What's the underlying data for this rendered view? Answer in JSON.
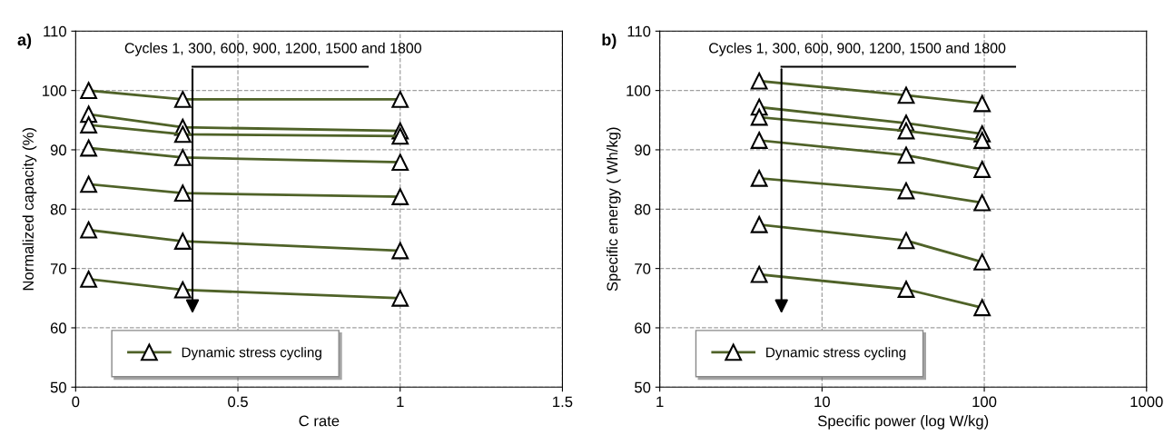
{
  "chart_data": [
    {
      "type": "line",
      "xlabel": "C rate",
      "ylabel": "Normalized capacity (%)",
      "annotations": [
        "a)",
        "Cycles 1, 300, 600, 900, 1200, 1500 and 1800"
      ],
      "x": [
        0.04,
        0.33,
        1
      ],
      "xlim": [
        0,
        1.5
      ],
      "xticks": [
        0,
        0.5,
        1,
        1.5
      ],
      "ylim": [
        50,
        110
      ],
      "yticks": [
        50,
        60,
        70,
        80,
        90,
        100,
        110
      ],
      "grid": true,
      "legend": "bottom left",
      "marker": "triangle",
      "line_style": "solid",
      "series": [
        {
          "name": "Dynamic stress cycling",
          "color": "#4f6228",
          "values": [
            100,
            98.5,
            98.5
          ]
        },
        {
          "color": "#4f6228",
          "values": [
            96,
            93.8,
            93.2
          ]
        },
        {
          "color": "#4f6228",
          "values": [
            94.2,
            92.6,
            92.3
          ]
        },
        {
          "color": "#4f6228",
          "values": [
            90.3,
            88.7,
            87.9
          ]
        },
        {
          "color": "#4f6228",
          "values": [
            84.2,
            82.7,
            82.1
          ]
        },
        {
          "color": "#4f6228",
          "values": [
            76.5,
            74.6,
            73
          ]
        },
        {
          "color": "#4f6228",
          "values": [
            68.2,
            66.4,
            65
          ]
        }
      ]
    },
    {
      "type": "line",
      "xlabel": "Specific power (log W/kg)",
      "ylabel": "Specific energy ( Wh/kg)",
      "annotations": [
        "b)",
        "Cycles 1, 300, 600, 900, 1200, 1500 and 1800"
      ],
      "x": [
        4.1,
        33,
        97
      ],
      "log": "x",
      "xlim": [
        1,
        1000
      ],
      "xticks": [
        1,
        10,
        100,
        1000
      ],
      "ylim": [
        50,
        110
      ],
      "yticks": [
        50,
        60,
        70,
        80,
        90,
        100,
        110
      ],
      "grid": true,
      "legend": "bottom left",
      "marker": "triangle",
      "line_style": "solid",
      "series": [
        {
          "name": "Dynamic stress cycling",
          "color": "#4f6228",
          "values": [
            101.6,
            99.2,
            97.8
          ]
        },
        {
          "color": "#4f6228",
          "values": [
            97.2,
            94.5,
            92.7
          ]
        },
        {
          "color": "#4f6228",
          "values": [
            95.5,
            93.2,
            91.6
          ]
        },
        {
          "color": "#4f6228",
          "values": [
            91.6,
            89.1,
            86.7
          ]
        },
        {
          "color": "#4f6228",
          "values": [
            85.2,
            83.1,
            81.1
          ]
        },
        {
          "color": "#4f6228",
          "values": [
            77.4,
            74.7,
            71.1
          ]
        },
        {
          "color": "#4f6228",
          "values": [
            69,
            66.5,
            63.4
          ]
        }
      ]
    }
  ]
}
